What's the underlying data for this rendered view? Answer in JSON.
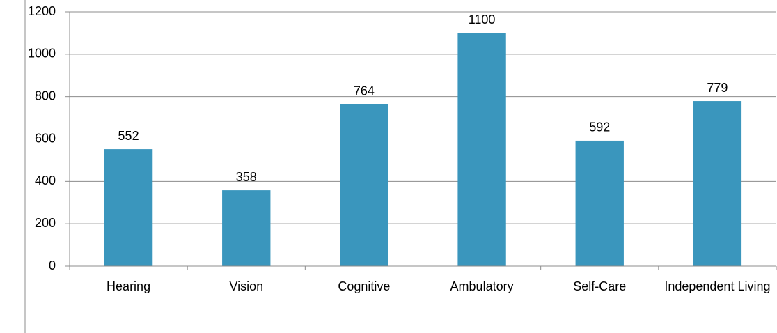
{
  "chart_data": {
    "type": "bar",
    "categories": [
      "Hearing",
      "Vision",
      "Cognitive",
      "Ambulatory",
      "Self-Care",
      "Independent Living"
    ],
    "values": [
      552,
      358,
      764,
      1100,
      592,
      779
    ],
    "color": "#3a96bd",
    "ylim": [
      0,
      1200
    ],
    "yticks": [
      0,
      200,
      400,
      600,
      800,
      1000,
      1200
    ],
    "grid": true
  }
}
